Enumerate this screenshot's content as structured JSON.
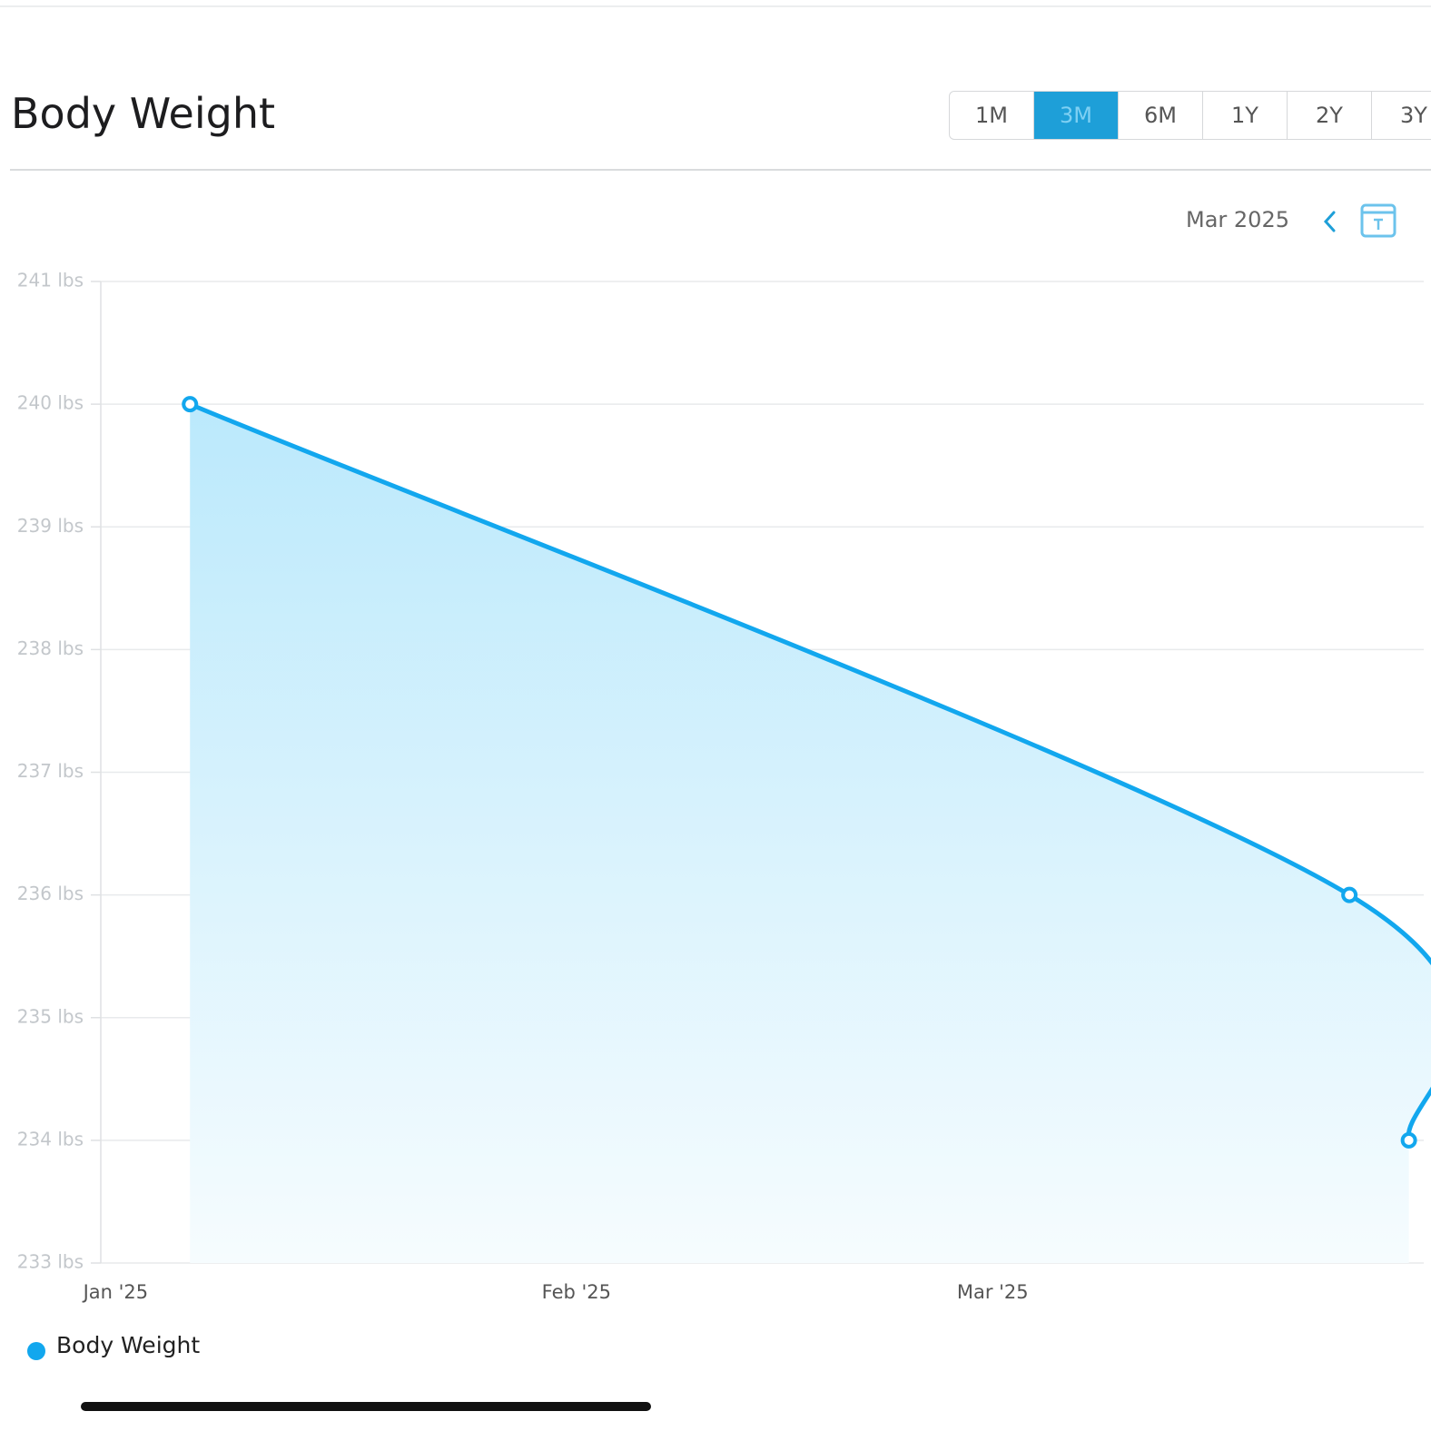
{
  "header": {
    "title": "Body Weight",
    "ranges": [
      "1M",
      "3M",
      "6M",
      "1Y",
      "2Y",
      "3Y"
    ],
    "selected": 1
  },
  "period": "Mar 2025",
  "chart_data": {
    "type": "line",
    "x": [
      5,
      83,
      87
    ],
    "xlim": [
      -1,
      88
    ],
    "xticks": [
      {
        "value": 0,
        "label": "Jan '25"
      },
      {
        "value": 31,
        "label": "Feb '25"
      },
      {
        "value": 59,
        "label": "Mar '25"
      }
    ],
    "series": [
      {
        "name": "Body Weight",
        "color": "#12a7ee",
        "values": [
          240,
          236,
          234
        ]
      }
    ],
    "ylim": [
      233,
      241
    ],
    "yticks": [
      {
        "value": 233,
        "label": "233 lbs"
      },
      {
        "value": 234,
        "label": "234 lbs"
      },
      {
        "value": 235,
        "label": "235 lbs"
      },
      {
        "value": 236,
        "label": "236 lbs"
      },
      {
        "value": 237,
        "label": "237 lbs"
      },
      {
        "value": 238,
        "label": "238 lbs"
      },
      {
        "value": 239,
        "label": "239 lbs"
      },
      {
        "value": 240,
        "label": "240 lbs"
      },
      {
        "value": 241,
        "label": "241 lbs"
      }
    ],
    "grid": true,
    "area": true
  }
}
